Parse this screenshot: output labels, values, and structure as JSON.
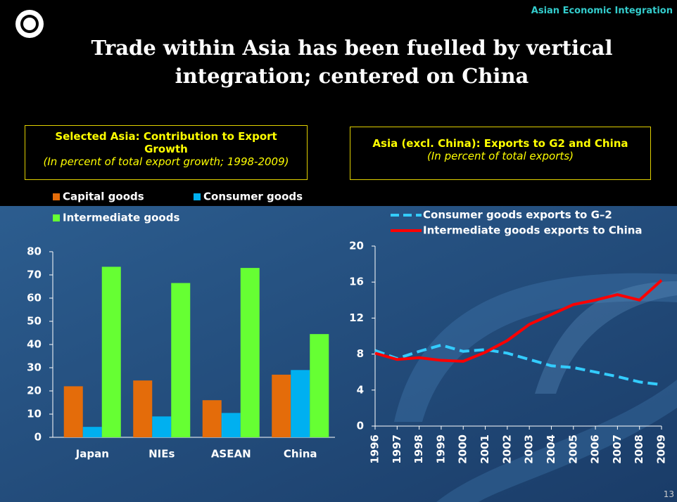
{
  "header_tag": "Asian Economic Integration",
  "title": "Trade within Asia has been fuelled by vertical integration; centered on China",
  "page_number": "13",
  "chart_data": [
    {
      "type": "bar",
      "title": "Selected Asia: Contribution to Export Growth",
      "subtitle": "(In percent of total export growth; 1998-2009)",
      "categories": [
        "Japan",
        "NIEs",
        "ASEAN",
        "China"
      ],
      "series": [
        {
          "name": "Capital goods",
          "color": "#e46c0a",
          "values": [
            22,
            24.5,
            16,
            27
          ]
        },
        {
          "name": "Consumer goods",
          "color": "#00b0f0",
          "values": [
            4.5,
            9,
            10.5,
            29
          ]
        },
        {
          "name": "Intermediate goods",
          "color": "#66ff33",
          "values": [
            73.5,
            66.5,
            73,
            44.5
          ]
        }
      ],
      "ylim": [
        0,
        80
      ],
      "yticks": [
        0,
        10,
        20,
        30,
        40,
        50,
        60,
        70,
        80
      ],
      "grid": false
    },
    {
      "type": "line",
      "title": "Asia (excl. China): Exports to G2 and China",
      "subtitle": "(In percent of total exports)",
      "categories": [
        "1996",
        "1997",
        "1998",
        "1999",
        "2000",
        "2001",
        "2002",
        "2003",
        "2004",
        "2005",
        "2006",
        "2007",
        "2008",
        "2009"
      ],
      "series": [
        {
          "name": "Consumer goods exports to G–2",
          "color": "#33ccff",
          "dashed": true,
          "values": [
            8.4,
            7.5,
            8.3,
            9.0,
            8.3,
            8.5,
            8.1,
            7.4,
            6.7,
            6.5,
            6.0,
            5.5,
            4.9,
            4.6
          ]
        },
        {
          "name": "Intermediate goods exports to China",
          "color": "#ff0000",
          "dashed": false,
          "values": [
            8.1,
            7.4,
            7.6,
            7.3,
            7.2,
            8.2,
            9.5,
            11.3,
            12.4,
            13.5,
            14.0,
            14.6,
            14.0,
            16.2
          ]
        }
      ],
      "ylim": [
        0,
        20
      ],
      "yticks": [
        0,
        4,
        8,
        12,
        16,
        20
      ],
      "grid": false
    }
  ]
}
